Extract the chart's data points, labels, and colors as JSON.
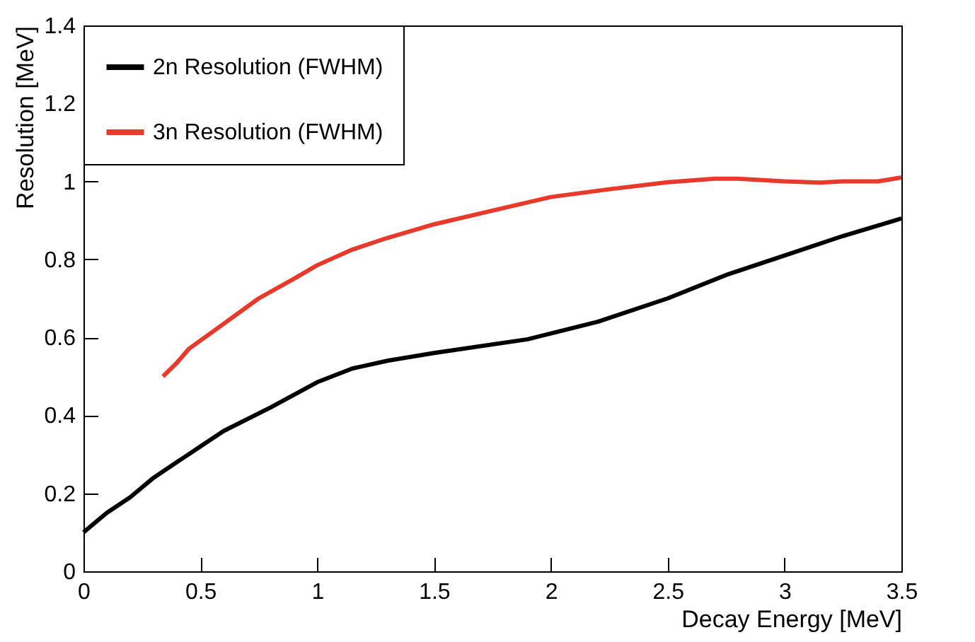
{
  "chart_data": {
    "type": "line",
    "xlabel": "Decay Energy [MeV]",
    "ylabel": "Resolution [MeV]",
    "xlim": [
      0,
      3.5
    ],
    "ylim": [
      0,
      1.4
    ],
    "xticks": [
      0,
      0.5,
      1,
      1.5,
      2,
      2.5,
      3,
      3.5
    ],
    "yticks": [
      0,
      0.2,
      0.4,
      0.6,
      0.8,
      1,
      1.2,
      1.4
    ],
    "legend": "top left",
    "line_style": "solid",
    "series": [
      {
        "name": "2n Resolution (FWHM)",
        "color": "#000000",
        "x": [
          0,
          0.1,
          0.2,
          0.3,
          0.4,
          0.5,
          0.6,
          0.8,
          1.0,
          1.15,
          1.3,
          1.5,
          1.9,
          2.0,
          2.2,
          2.5,
          2.75,
          3.0,
          3.25,
          3.5
        ],
        "values": [
          0.1,
          0.15,
          0.19,
          0.24,
          0.28,
          0.32,
          0.36,
          0.42,
          0.485,
          0.52,
          0.54,
          0.56,
          0.595,
          0.61,
          0.64,
          0.7,
          0.76,
          0.81,
          0.86,
          0.905
        ]
      },
      {
        "name": "3n Resolution (FWHM)",
        "color": "#e8392b",
        "x": [
          0.34,
          0.4,
          0.45,
          0.6,
          0.75,
          0.9,
          1.0,
          1.15,
          1.3,
          1.5,
          1.75,
          2.0,
          2.25,
          2.5,
          2.7,
          2.8,
          3.0,
          3.15,
          3.25,
          3.4,
          3.5
        ],
        "values": [
          0.5,
          0.535,
          0.57,
          0.635,
          0.7,
          0.75,
          0.785,
          0.825,
          0.855,
          0.89,
          0.925,
          0.96,
          0.98,
          0.998,
          1.007,
          1.007,
          1.0,
          0.997,
          1.0,
          1.0,
          1.01
        ]
      }
    ]
  }
}
